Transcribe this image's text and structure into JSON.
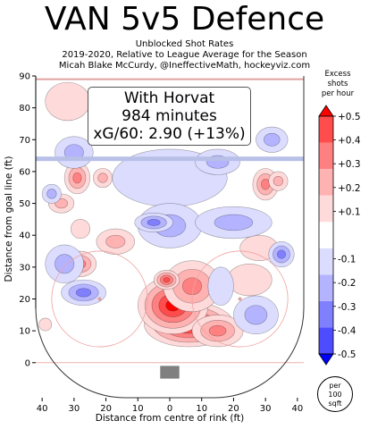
{
  "chart_data": {
    "type": "heatmap",
    "title": "VAN 5v5 Defence",
    "subtitle_lines": [
      "Unblocked Shot Rates",
      "2019-2020, Relative to League Average for the Season",
      "Micah Blake McCurdy, @IneffectiveMath, hockeyviz.com"
    ],
    "xlabel": "Distance from centre of rink (ft)",
    "ylabel": "Distance from goal line (ft)",
    "xlim": [
      -42,
      42
    ],
    "ylim": [
      -11,
      90
    ],
    "x_ticks": [
      "40",
      "30",
      "20",
      "10",
      "0",
      "10",
      "20",
      "30",
      "40"
    ],
    "x_tick_values": [
      -40,
      -30,
      -20,
      -10,
      0,
      10,
      20,
      30,
      40
    ],
    "y_ticks": [
      "0",
      "10",
      "20",
      "30",
      "40",
      "50",
      "60",
      "70",
      "80",
      "90"
    ],
    "y_tick_values": [
      0,
      10,
      20,
      30,
      40,
      50,
      60,
      70,
      80,
      90
    ],
    "annotation": [
      "With Horvat",
      "984 minutes",
      "xG/60: 2.90 (+13%)"
    ],
    "colorbar": {
      "title_lines": [
        "Excess",
        "shots",
        "per hour"
      ],
      "ticks": [
        "+0.5",
        "+0.4",
        "+0.3",
        "+0.2",
        "+0.1",
        "-0.1",
        "-0.2",
        "-0.3",
        "-0.4",
        "-0.5"
      ],
      "tick_values": [
        0.5,
        0.4,
        0.3,
        0.2,
        0.1,
        -0.1,
        -0.2,
        -0.3,
        -0.4,
        -0.5
      ],
      "range": [
        -0.5,
        0.5
      ],
      "colors": [
        "#0000ff",
        "#4d4dff",
        "#8080ff",
        "#b3b3ff",
        "#dcdcff",
        "#ffffff",
        "#ffdada",
        "#ffb2b2",
        "#ff8080",
        "#ff4d4d",
        "#ff0000"
      ]
    },
    "unit_note": [
      "per",
      "100",
      "sqft"
    ],
    "regions": [
      {
        "x": 6,
        "y": 12,
        "v": 0.5,
        "rx": 14,
        "ry": 7
      },
      {
        "x": 1,
        "y": 18,
        "v": 0.45,
        "rx": 11,
        "ry": 9
      },
      {
        "x": 7,
        "y": 24,
        "v": 0.35,
        "rx": 9,
        "ry": 8
      },
      {
        "x": 15,
        "y": 10,
        "v": 0.3,
        "rx": 8,
        "ry": 5
      },
      {
        "x": -1,
        "y": 26,
        "v": 0.4,
        "rx": 4,
        "ry": 3
      },
      {
        "x": 28,
        "y": 36,
        "v": 0.1,
        "rx": 6,
        "ry": 4
      },
      {
        "x": 30,
        "y": 56,
        "v": 0.25,
        "rx": 4,
        "ry": 5
      },
      {
        "x": 25,
        "y": 26,
        "v": 0.15,
        "rx": 7,
        "ry": 5
      },
      {
        "x": -10,
        "y": 56,
        "v": 0.15,
        "rx": 5,
        "ry": 4
      },
      {
        "x": -21,
        "y": 58,
        "v": 0.2,
        "rx": 3,
        "ry": 3
      },
      {
        "x": -29,
        "y": 58,
        "v": 0.3,
        "rx": 4,
        "ry": 5
      },
      {
        "x": -34,
        "y": 50,
        "v": 0.2,
        "rx": 4,
        "ry": 3
      },
      {
        "x": -28,
        "y": 42,
        "v": 0.1,
        "rx": 3,
        "ry": 3
      },
      {
        "x": -28,
        "y": 31,
        "v": 0.35,
        "rx": 5,
        "ry": 4
      },
      {
        "x": -17,
        "y": 38,
        "v": 0.2,
        "rx": 6,
        "ry": 4
      },
      {
        "x": -32,
        "y": 82,
        "v": 0.1,
        "rx": 7,
        "ry": 6
      },
      {
        "x": -39,
        "y": 12,
        "v": 0.1,
        "rx": 2,
        "ry": 2
      },
      {
        "x": 34,
        "y": 57,
        "v": 0.2,
        "rx": 3,
        "ry": 3
      },
      {
        "x": -30,
        "y": 66,
        "v": -0.2,
        "rx": 6,
        "ry": 5
      },
      {
        "x": 0,
        "y": 58,
        "v": -0.15,
        "rx": 18,
        "ry": 9
      },
      {
        "x": 0,
        "y": 43,
        "v": -0.2,
        "rx": 10,
        "ry": 7
      },
      {
        "x": -5,
        "y": 44,
        "v": -0.3,
        "rx": 6,
        "ry": 3
      },
      {
        "x": -33,
        "y": 31,
        "v": -0.2,
        "rx": 6,
        "ry": 6
      },
      {
        "x": -27,
        "y": 22,
        "v": -0.25,
        "rx": 7,
        "ry": 4
      },
      {
        "x": 16,
        "y": 24,
        "v": -0.1,
        "rx": 4,
        "ry": 6
      },
      {
        "x": 20,
        "y": 44,
        "v": -0.2,
        "rx": 12,
        "ry": 5
      },
      {
        "x": 35,
        "y": 34,
        "v": -0.3,
        "rx": 4,
        "ry": 4
      },
      {
        "x": 27,
        "y": 15,
        "v": -0.2,
        "rx": 7,
        "ry": 6
      },
      {
        "x": 32,
        "y": 70,
        "v": -0.2,
        "rx": 5,
        "ry": 4
      },
      {
        "x": 15,
        "y": 63,
        "v": -0.2,
        "rx": 7,
        "ry": 4
      },
      {
        "x": -37,
        "y": 53,
        "v": -0.2,
        "rx": 3,
        "ry": 3
      },
      {
        "x": 5,
        "y": 80,
        "v": -0.1,
        "rx": 5,
        "ry": 5
      }
    ]
  }
}
